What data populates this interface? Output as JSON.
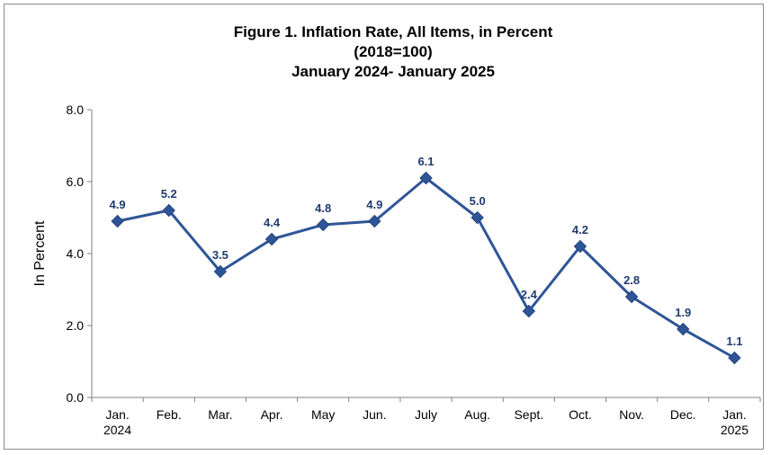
{
  "title_lines": [
    "Figure 1. Inflation Rate, All Items, in Percent",
    "(2018=100)",
    "January 2024- January 2025"
  ],
  "chart_data": {
    "type": "line",
    "title": "Figure 1. Inflation Rate, All Items, in Percent (2018=100) January 2024- January 2025",
    "xlabel": "",
    "ylabel": "In Percent",
    "ylim": [
      0,
      8
    ],
    "yticks": [
      "0.0",
      "2.0",
      "4.0",
      "6.0",
      "8.0"
    ],
    "categories": [
      [
        "Jan.",
        "2024"
      ],
      [
        "Feb."
      ],
      [
        "Mar."
      ],
      [
        "Apr."
      ],
      [
        "May"
      ],
      [
        "Jun."
      ],
      [
        "July"
      ],
      [
        "Aug."
      ],
      [
        "Sept."
      ],
      [
        "Oct."
      ],
      [
        "Nov."
      ],
      [
        "Dec."
      ],
      [
        "Jan.",
        "2025"
      ]
    ],
    "series": [
      {
        "values": [
          4.9,
          5.2,
          3.5,
          4.4,
          4.8,
          4.9,
          6.1,
          5.0,
          2.4,
          4.2,
          2.8,
          1.9,
          1.1
        ],
        "labels": [
          "4.9",
          "5.2",
          "3.5",
          "4.4",
          "4.8",
          "4.9",
          "6.1",
          "5.0",
          "2.4",
          "4.2",
          "2.8",
          "1.9",
          "1.1"
        ],
        "color": "#2f5597",
        "marker": "diamond"
      }
    ],
    "grid": false,
    "legend": "none"
  }
}
